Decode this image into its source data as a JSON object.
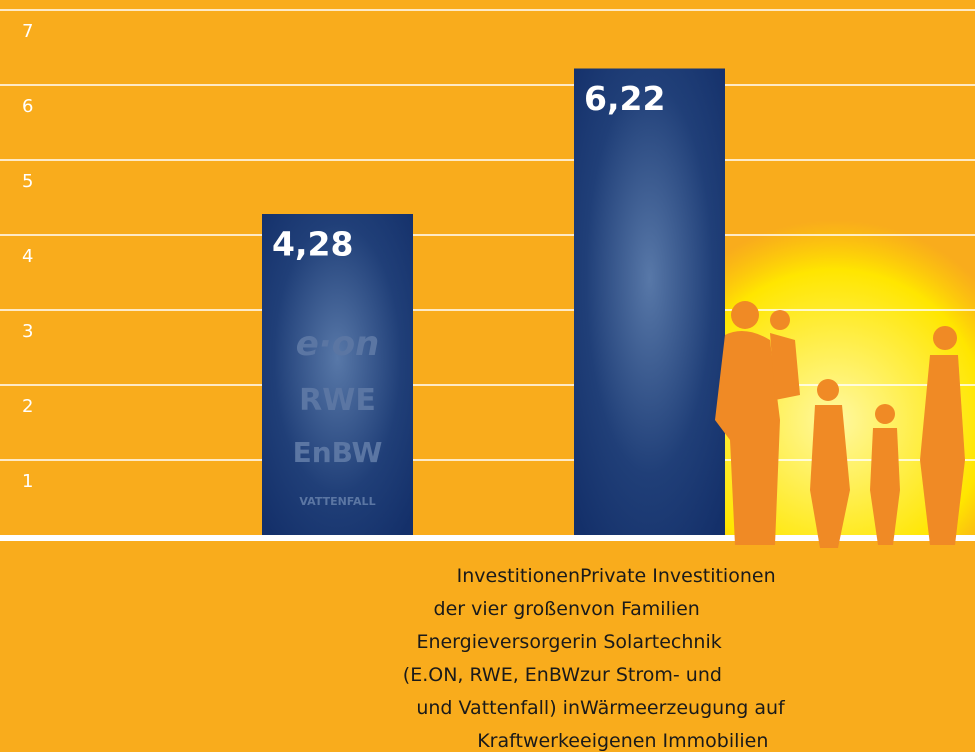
{
  "chart_data": {
    "type": "bar",
    "categories": [
      "Investitionen\nder vier großen\nEnergieversorger\n(E.ON, RWE, EnBW\nund Vattenfall) in\nKraftwerke",
      "Private Investitionen\nvon Familien\nin Solartechnik\nzur Strom- und\nWärmeerzeugung auf\neigenen Immobilien"
    ],
    "values": [
      4.28,
      6.22
    ],
    "value_labels": [
      "4,28",
      "6,22"
    ],
    "color": "#1b3a73",
    "ylim": [
      0,
      7
    ],
    "yticks": [
      1,
      2,
      3,
      4,
      5,
      6,
      7
    ],
    "grid": true,
    "logos": [
      "e·on",
      "RWE",
      "EnBW",
      "VATTENFALL"
    ]
  }
}
